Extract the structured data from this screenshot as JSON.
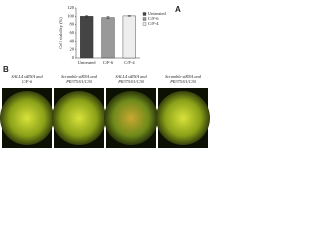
{
  "chart_data": {
    "type": "bar",
    "panel_label": "A",
    "ylabel": "Cell viability (%)",
    "categories": [
      "Untreated",
      "C/F-6",
      "C/F-4"
    ],
    "values": [
      100,
      97,
      101
    ],
    "errors": [
      2,
      3,
      1
    ],
    "colors": [
      "#444444",
      "#999999",
      "#eeeeee"
    ],
    "ylim": [
      0,
      120
    ],
    "yticks": [
      0,
      20,
      40,
      60,
      80,
      100,
      120
    ],
    "legend": "upper right"
  },
  "figure": {
    "panel_label": "B",
    "images": [
      {
        "caption": [
          "SALL4 siRNA and",
          "C/F-6"
        ]
      },
      {
        "caption": [
          "Scramble siRNA and",
          "PR375/01/C30"
        ]
      },
      {
        "caption": [
          "SALL4 siRNA and",
          "PR375/01/C30"
        ]
      },
      {
        "caption": [
          "Scramble siRNA and",
          "PR375/01/C30"
        ]
      }
    ]
  }
}
